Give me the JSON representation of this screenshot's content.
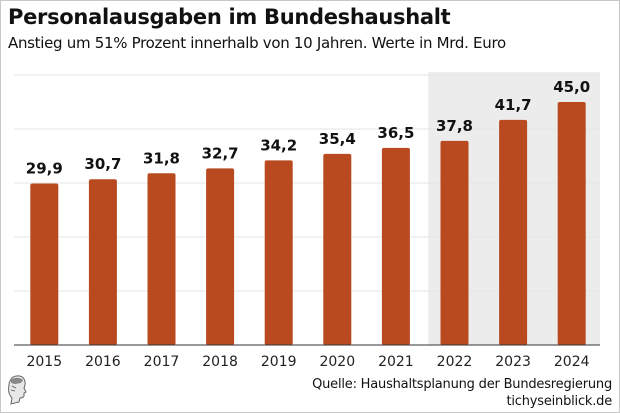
{
  "header": {
    "title": "Personalausgaben im Bundeshaushalt",
    "subtitle": "Anstieg um 51% Prozent innerhalb von 10 Jahren. Werte in Mrd. Euro"
  },
  "footer": {
    "source": "Quelle: Haushaltsplanung der Bundesregierung",
    "site": "tichyseinblick.de",
    "logo_icon": "profile-head-logo-icon"
  },
  "colors": {
    "bar": "#b94a20",
    "highlight_bg": "#ececec",
    "grid": "#e6e6e6",
    "axis": "#333333"
  },
  "chart_data": {
    "type": "bar",
    "title": "Personalausgaben im Bundeshaushalt",
    "subtitle": "Anstieg um 51% Prozent innerhalb von 10 Jahren. Werte in Mrd. Euro",
    "xlabel": "",
    "ylabel": "Mrd. Euro",
    "categories": [
      "2015",
      "2016",
      "2017",
      "2018",
      "2019",
      "2020",
      "2021",
      "2022",
      "2023",
      "2024"
    ],
    "values": [
      29.9,
      30.7,
      31.8,
      32.7,
      34.2,
      35.4,
      36.5,
      37.8,
      41.7,
      45.0
    ],
    "data_labels": [
      "29,9",
      "30,7",
      "31,8",
      "32,7",
      "34,2",
      "35,4",
      "36,5",
      "37,8",
      "41,7",
      "45,0"
    ],
    "ylim": [
      0,
      50
    ],
    "gridlines": [
      10,
      20,
      30,
      40,
      50
    ],
    "grid": true,
    "highlighted_categories": [
      "2022",
      "2023",
      "2024"
    ],
    "legend": "none"
  }
}
